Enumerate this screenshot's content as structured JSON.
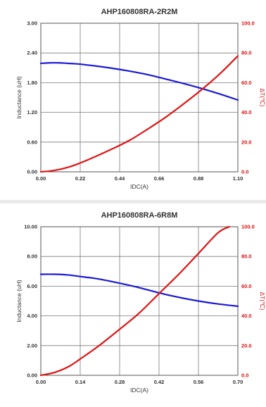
{
  "colors": {
    "inductance": "#1a1ad6",
    "temperature": "#e01414",
    "grid": "#7a7a7a",
    "separator": "#e9e9e9"
  },
  "chart_data": [
    {
      "type": "line",
      "title": "AHP160808RA-2R2M",
      "xlabel": "IDC(A)",
      "ylabel": "Inductance (uH)",
      "y2label": "ΔT(℃)",
      "xlim": [
        0,
        1.1
      ],
      "ylim": [
        0,
        3.0
      ],
      "y2lim": [
        0,
        100
      ],
      "x_ticks": [
        "0.00",
        "0.22",
        "0.44",
        "0.66",
        "0.88",
        "1.10"
      ],
      "y_ticks": [
        "0.00",
        "0.60",
        "1.20",
        "1.80",
        "2.40",
        "3.00"
      ],
      "y2_ticks": [
        "0.0",
        "20.0",
        "40.0",
        "60.0",
        "80.0",
        "100.0"
      ],
      "grid": true,
      "series": [
        {
          "axis": "left",
          "x": [
            0.0,
            0.05,
            0.1,
            0.15,
            0.2,
            0.3,
            0.4,
            0.5,
            0.6,
            0.7,
            0.8,
            0.9,
            1.0,
            1.1
          ],
          "values": [
            2.19,
            2.2,
            2.2,
            2.19,
            2.18,
            2.14,
            2.09,
            2.03,
            1.96,
            1.87,
            1.78,
            1.68,
            1.57,
            1.45
          ]
        },
        {
          "axis": "right",
          "x": [
            0.0,
            0.05,
            0.1,
            0.15,
            0.2,
            0.3,
            0.4,
            0.5,
            0.6,
            0.7,
            0.8,
            0.9,
            1.0,
            1.1
          ],
          "values": [
            0,
            0.5,
            1.5,
            3,
            5,
            10,
            15.5,
            21.5,
            29,
            37,
            46,
            55.5,
            66,
            78
          ]
        }
      ]
    },
    {
      "type": "line",
      "title": "AHP160808RA-6R8M",
      "xlabel": "IDC(A)",
      "ylabel": "Inductance (uH)",
      "y2label": "ΔT(℃)",
      "xlim": [
        0,
        0.7
      ],
      "ylim": [
        0,
        10.0
      ],
      "y2lim": [
        0,
        100
      ],
      "x_ticks": [
        "0.00",
        "0.14",
        "0.28",
        "0.42",
        "0.56",
        "0.70"
      ],
      "y_ticks": [
        "0.00",
        "2.00",
        "4.00",
        "6.00",
        "8.00",
        "10.00"
      ],
      "y2_ticks": [
        "0.0",
        "20.0",
        "40.0",
        "60.0",
        "80.0",
        "100.0"
      ],
      "grid": true,
      "series": [
        {
          "axis": "left",
          "x": [
            0.0,
            0.05,
            0.1,
            0.14,
            0.2,
            0.28,
            0.35,
            0.42,
            0.49,
            0.56,
            0.63,
            0.7
          ],
          "values": [
            6.8,
            6.8,
            6.75,
            6.65,
            6.5,
            6.2,
            5.9,
            5.55,
            5.25,
            5.0,
            4.8,
            4.65
          ]
        },
        {
          "axis": "right",
          "x": [
            0.0,
            0.05,
            0.1,
            0.14,
            0.2,
            0.28,
            0.35,
            0.42,
            0.49,
            0.56,
            0.63,
            0.67
          ],
          "values": [
            0,
            2,
            6,
            11,
            19,
            31,
            42,
            55,
            68,
            82,
            96,
            100
          ]
        }
      ]
    }
  ]
}
